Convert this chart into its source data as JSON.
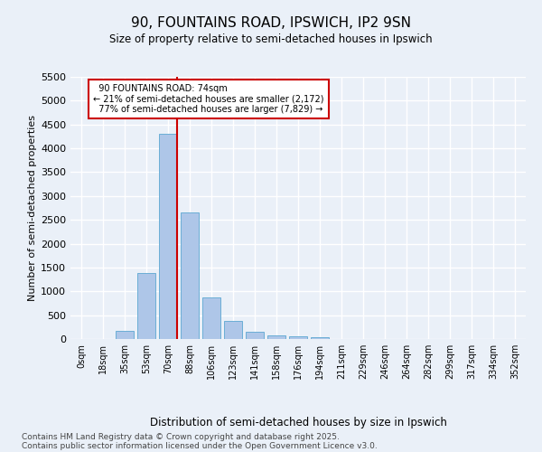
{
  "title": "90, FOUNTAINS ROAD, IPSWICH, IP2 9SN",
  "subtitle": "Size of property relative to semi-detached houses in Ipswich",
  "xlabel": "Distribution of semi-detached houses by size in Ipswich",
  "ylabel": "Number of semi-detached properties",
  "footer_line1": "Contains HM Land Registry data © Crown copyright and database right 2025.",
  "footer_line2": "Contains public sector information licensed under the Open Government Licence v3.0.",
  "bar_labels": [
    "0sqm",
    "18sqm",
    "35sqm",
    "53sqm",
    "70sqm",
    "88sqm",
    "106sqm",
    "123sqm",
    "141sqm",
    "158sqm",
    "176sqm",
    "194sqm",
    "211sqm",
    "229sqm",
    "246sqm",
    "264sqm",
    "282sqm",
    "299sqm",
    "317sqm",
    "334sqm",
    "352sqm"
  ],
  "bar_values": [
    0,
    0,
    170,
    1380,
    4300,
    2650,
    870,
    380,
    150,
    80,
    50,
    30,
    0,
    0,
    0,
    0,
    0,
    0,
    0,
    0,
    0
  ],
  "bar_color": "#aec6e8",
  "bar_edge_color": "#6baed6",
  "ylim_max": 5500,
  "yticks": [
    0,
    500,
    1000,
    1500,
    2000,
    2500,
    3000,
    3500,
    4000,
    4500,
    5000,
    5500
  ],
  "property_label": "90 FOUNTAINS ROAD: 74sqm",
  "pct_smaller": 21,
  "pct_larger": 77,
  "count_smaller": 2172,
  "count_larger": 7829,
  "vline_bin": 4,
  "red_color": "#cc0000",
  "background_color": "#eaf0f8",
  "grid_color": "#ffffff"
}
